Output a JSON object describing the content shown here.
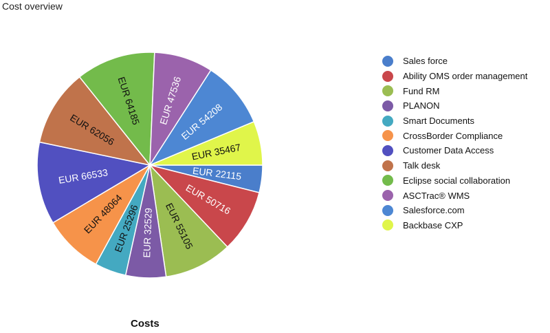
{
  "chart_data": {
    "type": "pie",
    "title": "Cost overview",
    "xlabel": "Costs",
    "value_prefix": "EUR ",
    "start_angle_deg": 0,
    "slices": [
      {
        "label": "Sales force",
        "value": 22115,
        "color": "#4a7ecb"
      },
      {
        "label": "Ability OMS order management",
        "value": 50716,
        "color": "#c9474b"
      },
      {
        "label": "Fund RM",
        "value": 55105,
        "color": "#9bbd52"
      },
      {
        "label": "PLANON",
        "value": 32529,
        "color": "#7c5aa6"
      },
      {
        "label": "Smart Documents",
        "value": 25296,
        "color": "#44a9c1"
      },
      {
        "label": "CrossBorder Compliance",
        "value": 48064,
        "color": "#f6934a"
      },
      {
        "label": "Customer Data Access",
        "value": 66533,
        "color": "#5150c0"
      },
      {
        "label": "Talk desk",
        "value": 62056,
        "color": "#c0734b"
      },
      {
        "label": "Eclipse social collaboration",
        "value": 64185,
        "color": "#73bb4b"
      },
      {
        "label": "ASCTrac® WMS",
        "value": 47536,
        "color": "#9b63ac"
      },
      {
        "label": "Salesforce.com",
        "value": 54208,
        "color": "#4d87d3"
      },
      {
        "label": "Backbase CXP",
        "value": 35467,
        "color": "#e0f54a"
      }
    ],
    "label_colors": [
      "#ffffff",
      "#ffffff",
      "#111111",
      "#ffffff",
      "#111111",
      "#111111",
      "#ffffff",
      "#111111",
      "#111111",
      "#ffffff",
      "#ffffff",
      "#111111"
    ],
    "legend_position": "right"
  }
}
